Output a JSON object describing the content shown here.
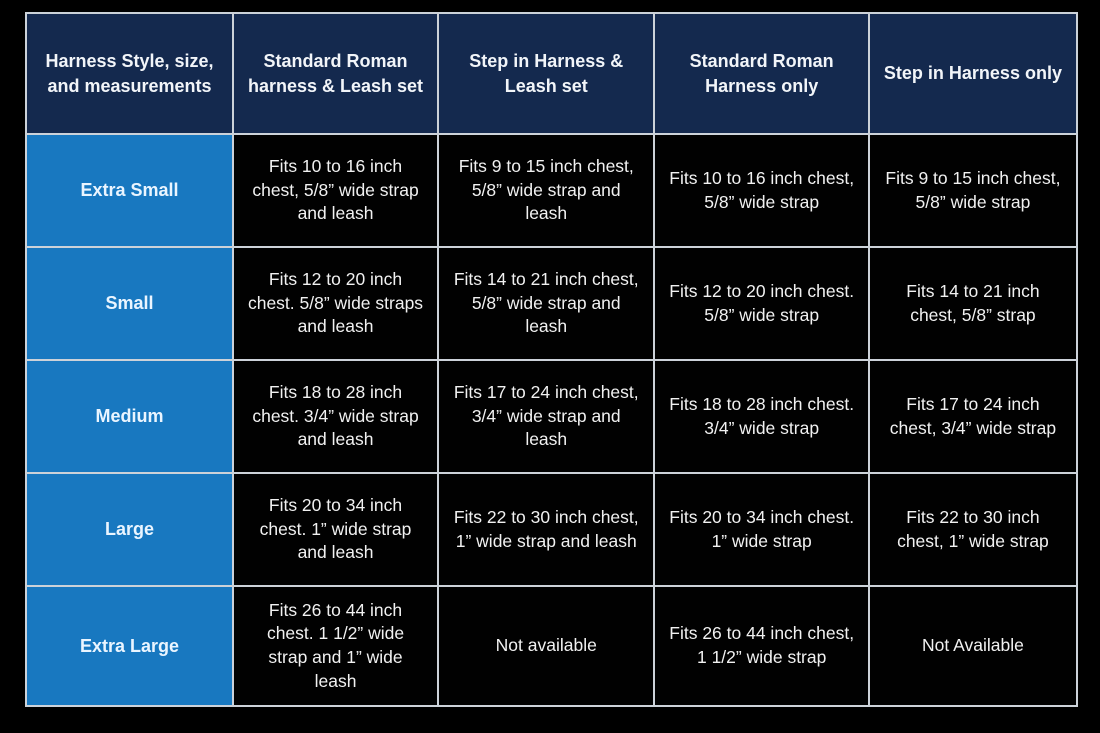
{
  "page": {
    "background_color": "#000000"
  },
  "table": {
    "colors": {
      "header_bg": "#14294e",
      "size_label_bg": "#1878c0",
      "cell_bg": "#010101",
      "border": "#ccd2d9",
      "header_text": "#f2f5f9",
      "cell_text": "#f1f1f1"
    },
    "columns": [
      {
        "label": "Harness Style, size, and measurements"
      },
      {
        "label": "Standard Roman harness & Leash set"
      },
      {
        "label": "Step in Harness & Leash set"
      },
      {
        "label": "Standard Roman Harness only"
      },
      {
        "label": "Step in Harness only"
      }
    ],
    "rows": [
      {
        "size": "Extra Small",
        "cells": [
          "Fits 10 to 16 inch chest, 5/8” wide strap and leash",
          "Fits 9 to 15 inch chest, 5/8” wide strap and leash",
          "Fits 10 to 16 inch chest, 5/8” wide strap",
          "Fits 9 to 15 inch chest, 5/8” wide strap"
        ]
      },
      {
        "size": "Small",
        "cells": [
          "Fits 12 to 20 inch chest. 5/8” wide straps and leash",
          "Fits 14 to 21 inch chest, 5/8” wide strap and leash",
          "Fits 12 to 20 inch chest. 5/8” wide strap",
          "Fits 14 to 21 inch chest, 5/8” strap"
        ]
      },
      {
        "size": "Medium",
        "cells": [
          "Fits 18 to 28 inch chest. 3/4” wide strap and leash",
          "Fits 17 to 24 inch chest, 3/4” wide strap and leash",
          "Fits 18 to 28 inch chest. 3/4” wide strap",
          "Fits 17 to 24 inch chest, 3/4” wide strap"
        ]
      },
      {
        "size": "Large",
        "cells": [
          "Fits 20 to 34 inch chest. 1” wide strap and leash",
          "Fits 22 to 30 inch chest, 1” wide strap and leash",
          "Fits 20 to 34 inch chest. 1” wide strap",
          "Fits 22 to 30 inch chest, 1” wide strap"
        ]
      },
      {
        "size": "Extra Large",
        "cells": [
          "Fits 26 to 44 inch chest. 1 1/2” wide strap and 1” wide leash",
          "Not available",
          "Fits 26 to 44 inch chest, 1 1/2” wide strap",
          "Not Available"
        ]
      }
    ]
  }
}
